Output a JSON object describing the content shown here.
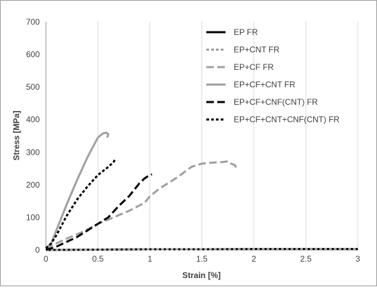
{
  "chart_data": {
    "type": "line",
    "title": "",
    "xlabel": "Strain [%]",
    "ylabel": "Stress [MPa]",
    "xlim": [
      0,
      3
    ],
    "ylim": [
      0,
      700
    ],
    "xticks": [
      "0",
      "0.5",
      "1",
      "1.5",
      "2",
      "2.5",
      "3"
    ],
    "yticks": [
      "0",
      "100",
      "200",
      "300",
      "400",
      "500",
      "600",
      "700"
    ],
    "grid": "vertical",
    "legend_position": "top-right",
    "series": [
      {
        "name": "EP FR",
        "color": "#000000",
        "dash": "solid",
        "x": [
          0,
          0.5,
          1,
          1.5,
          2,
          2.5,
          3
        ],
        "y": [
          0,
          1,
          2,
          2,
          3,
          3,
          3
        ]
      },
      {
        "name": "EP+CNT FR",
        "color": "#a0a0a0",
        "dash": "short",
        "x": [
          0,
          0.5,
          1,
          1.5,
          2,
          2.5,
          3
        ],
        "y": [
          0,
          1,
          2,
          2,
          3,
          3,
          3
        ]
      },
      {
        "name": "EP+CF FR",
        "color": "#a0a0a0",
        "dash": "long",
        "x": [
          0,
          0.1,
          0.2,
          0.35,
          0.5,
          0.65,
          0.8,
          0.95,
          1.0,
          1.1,
          1.25,
          1.4,
          1.5,
          1.6,
          1.7,
          1.75,
          1.78,
          1.82,
          1.84
        ],
        "y": [
          5,
          20,
          35,
          55,
          80,
          100,
          120,
          145,
          165,
          190,
          220,
          255,
          265,
          268,
          270,
          272,
          265,
          260,
          245
        ]
      },
      {
        "name": "EP+CF+CNT FR",
        "color": "#a0a0a0",
        "dash": "solid",
        "x": [
          0,
          0.05,
          0.1,
          0.2,
          0.3,
          0.4,
          0.5,
          0.55,
          0.58,
          0.6,
          0.59
        ],
        "y": [
          5,
          20,
          60,
          140,
          215,
          285,
          345,
          358,
          360,
          355,
          345
        ]
      },
      {
        "name": "EP+CF+CNF(CNT) FR",
        "color": "#000000",
        "dash": "long",
        "x": [
          0,
          0.1,
          0.2,
          0.3,
          0.4,
          0.5,
          0.6,
          0.7,
          0.8,
          0.9,
          0.95,
          1.0,
          1.02
        ],
        "y": [
          0,
          10,
          25,
          40,
          60,
          80,
          100,
          135,
          165,
          205,
          220,
          230,
          232
        ]
      },
      {
        "name": "EP+CF+CNT+CNF(CNT) FR",
        "color": "#000000",
        "dash": "short",
        "x": [
          0,
          0.05,
          0.1,
          0.2,
          0.3,
          0.4,
          0.5,
          0.6,
          0.65,
          0.67
        ],
        "y": [
          5,
          20,
          45,
          105,
          155,
          195,
          230,
          255,
          270,
          280
        ]
      }
    ]
  }
}
